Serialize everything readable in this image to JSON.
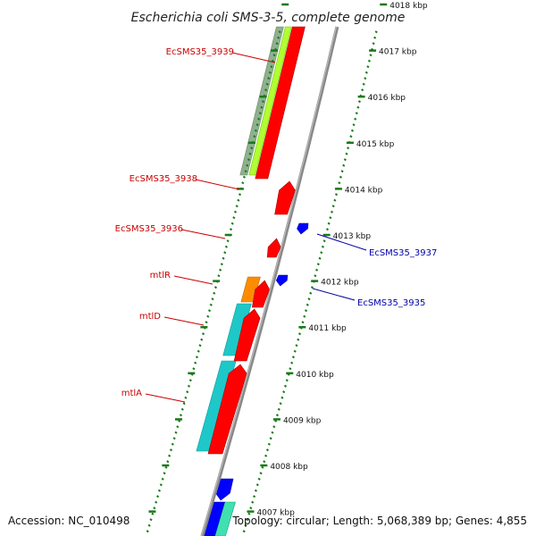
{
  "title": "Escherichia coli SMS-3-5, complete genome",
  "footer": {
    "accession": "Accession: NC_010498",
    "summary": "Topology: circular; Length: 5,068,389 bp; Genes: 4,855"
  },
  "colors": {
    "forward_cds": "#ff0000",
    "reverse_cds": "#0000ff",
    "label_forward": "#cc0000",
    "label_reverse": "#0000aa",
    "backbone": "#888888",
    "ticks": "#1a7a1a",
    "cyan_band": "#1ec8c8",
    "orange_band": "#ff8c00",
    "lime_band": "#b0ff30",
    "grey_green_band": "#8fb08f",
    "teal_band": "#40e0b0"
  },
  "kbp_ticks": [
    {
      "label": "4007 kbp",
      "kb": 4007
    },
    {
      "label": "4008 kbp",
      "kb": 4008
    },
    {
      "label": "4009 kbp",
      "kb": 4009
    },
    {
      "label": "4010 kbp",
      "kb": 4010
    },
    {
      "label": "4011 kbp",
      "kb": 4011
    },
    {
      "label": "4012 kbp",
      "kb": 4012
    },
    {
      "label": "4013 kbp",
      "kb": 4013
    },
    {
      "label": "4014 kbp",
      "kb": 4014
    },
    {
      "label": "4015 kbp",
      "kb": 4015
    },
    {
      "label": "4016 kbp",
      "kb": 4016
    },
    {
      "label": "4017 kbp",
      "kb": 4017
    },
    {
      "label": "4018 kbp",
      "kb": 4018
    }
  ],
  "gene_labels": [
    {
      "text": "EcSMS35_3939",
      "strand": "forward",
      "kb": 4017.0
    },
    {
      "text": "EcSMS35_3938",
      "strand": "forward",
      "kb": 4014.0
    },
    {
      "text": "EcSMS35_3936",
      "strand": "forward",
      "kb": 4013.1
    },
    {
      "text": "mtlR",
      "strand": "forward",
      "kb": 4012.2
    },
    {
      "text": "mtlD",
      "strand": "forward",
      "kb": 4011.45
    },
    {
      "text": "mtlA",
      "strand": "forward",
      "kb": 4010.1
    },
    {
      "text": "EcSMS35_3937",
      "strand": "reverse",
      "kb": 4013.2
    },
    {
      "text": "EcSMS35_3935",
      "strand": "reverse",
      "kb": 4012.1
    }
  ]
}
